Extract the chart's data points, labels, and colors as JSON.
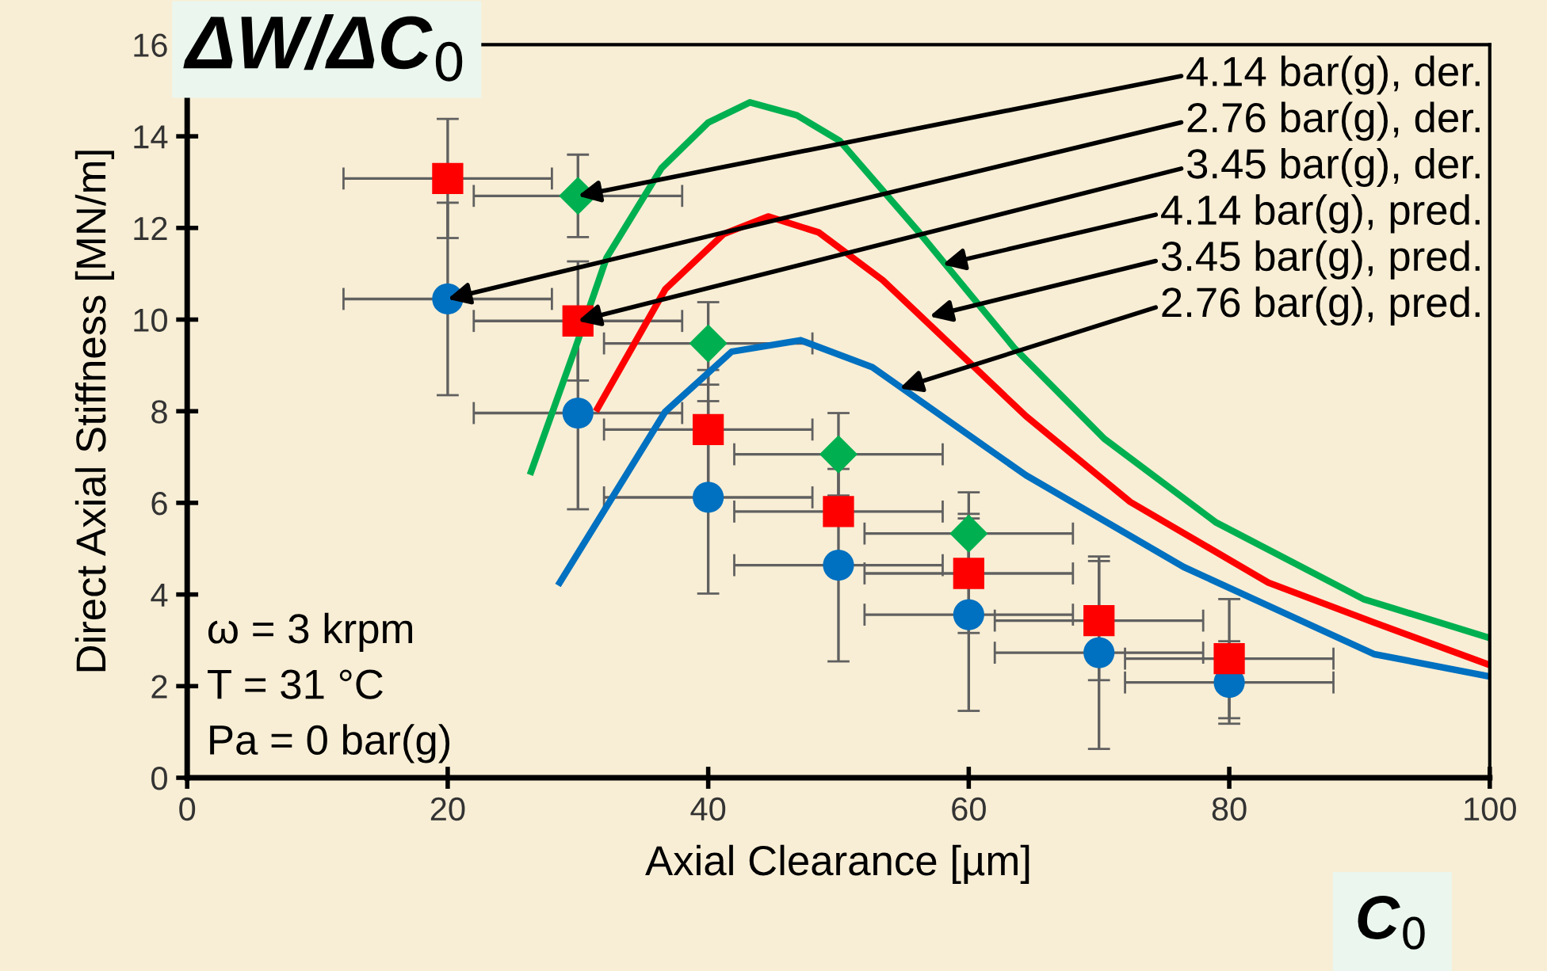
{
  "chart_data": {
    "type": "scatter",
    "xlabel": "Axial Clearance [µm]",
    "ylabel": "Direct Axial Stiffness [MN/m]",
    "xlim": [
      0,
      100
    ],
    "xticks": [
      0,
      20,
      40,
      60,
      80,
      100
    ],
    "ylim": [
      0,
      16
    ],
    "yticks": [
      0,
      2,
      4,
      6,
      8,
      10,
      12,
      14,
      16
    ],
    "grid": false,
    "series": [
      {
        "type": "line",
        "color": "#00b050",
        "marker": "none",
        "line_style": "solid",
        "x": [
          26.4,
          29.8,
          32.2,
          36.4,
          40,
          43.2,
          46.8,
          50.1,
          56.2,
          63.5,
          70.4,
          79,
          90.3,
          100
        ],
        "values": [
          6.68,
          9.38,
          11.35,
          13.3,
          14.3,
          14.74,
          14.46,
          13.9,
          11.9,
          9.38,
          7.4,
          5.57,
          3.9,
          3.05
        ]
      },
      {
        "type": "line",
        "color": "#ff0000",
        "marker": "none",
        "line_style": "solid",
        "x": [
          31.5,
          36.7,
          41.2,
          44.6,
          48.5,
          53.4,
          64.4,
          72.4,
          83,
          91.1,
          100
        ],
        "values": [
          8.06,
          10.66,
          11.87,
          12.25,
          11.9,
          10.86,
          7.89,
          6.02,
          4.26,
          3.39,
          2.46
        ]
      },
      {
        "type": "line",
        "color": "#0070c0",
        "marker": "none",
        "line_style": "solid",
        "x": [
          28.6,
          36.7,
          41.8,
          47.1,
          52.6,
          64.4,
          76.5,
          91.1,
          100
        ],
        "values": [
          4.26,
          7.99,
          9.3,
          9.55,
          8.96,
          6.6,
          4.6,
          2.7,
          2.21
        ]
      },
      {
        "color": "#0070c0",
        "marker": "circle",
        "x": [
          20,
          30,
          40,
          50,
          60,
          70,
          80
        ],
        "values": [
          10.45,
          7.96,
          6.12,
          4.64,
          3.56,
          2.73,
          2.08
        ],
        "errors": [
          2.1,
          2.1,
          2.1,
          2.1,
          2.1,
          2.1,
          0.9
        ],
        "xerrors": [
          8,
          8,
          8,
          8,
          8,
          8,
          8
        ]
      },
      {
        "color": "#ff0000",
        "marker": "square",
        "x": [
          20,
          30,
          40,
          50,
          60,
          70,
          80
        ],
        "values": [
          13.08,
          9.97,
          7.6,
          5.81,
          4.46,
          3.43,
          2.6
        ],
        "errors": [
          1.3,
          1.3,
          1.3,
          null,
          1.3,
          1.3,
          1.3
        ],
        "xerrors": [
          8,
          8,
          8,
          8,
          8,
          8,
          8
        ]
      },
      {
        "color": "#00b050",
        "marker": "diamond",
        "x": [
          30,
          40,
          50,
          60
        ],
        "values": [
          12.7,
          9.48,
          7.06,
          5.33
        ],
        "errors": [
          0.9,
          0.9,
          0.9,
          0.9
        ],
        "xerrors": [
          8,
          8,
          8,
          8
        ]
      }
    ],
    "annotations": [
      {
        "text": "4.14 bar(g), der.",
        "x": 30,
        "y": 12.7
      },
      {
        "text": "2.76 bar(g), der.",
        "x": 20,
        "y": 10.45
      },
      {
        "text": "3.45 bar(g), der.",
        "x": 30,
        "y": 9.97
      },
      {
        "text": "4.14 bar(g), pred.",
        "x": 58,
        "y": 11.2
      },
      {
        "text": "3.45 bar(g), pred.",
        "x": 57,
        "y": 10.07
      },
      {
        "text": "2.76 bar(g), pred.",
        "x": 54.7,
        "y": 8.5
      },
      "ω = 3 krpm\nT = 31 °C\nPa = 0 bar(g)",
      "ΔW/ΔC$_{0}$",
      "C$_{0}$"
    ]
  }
}
